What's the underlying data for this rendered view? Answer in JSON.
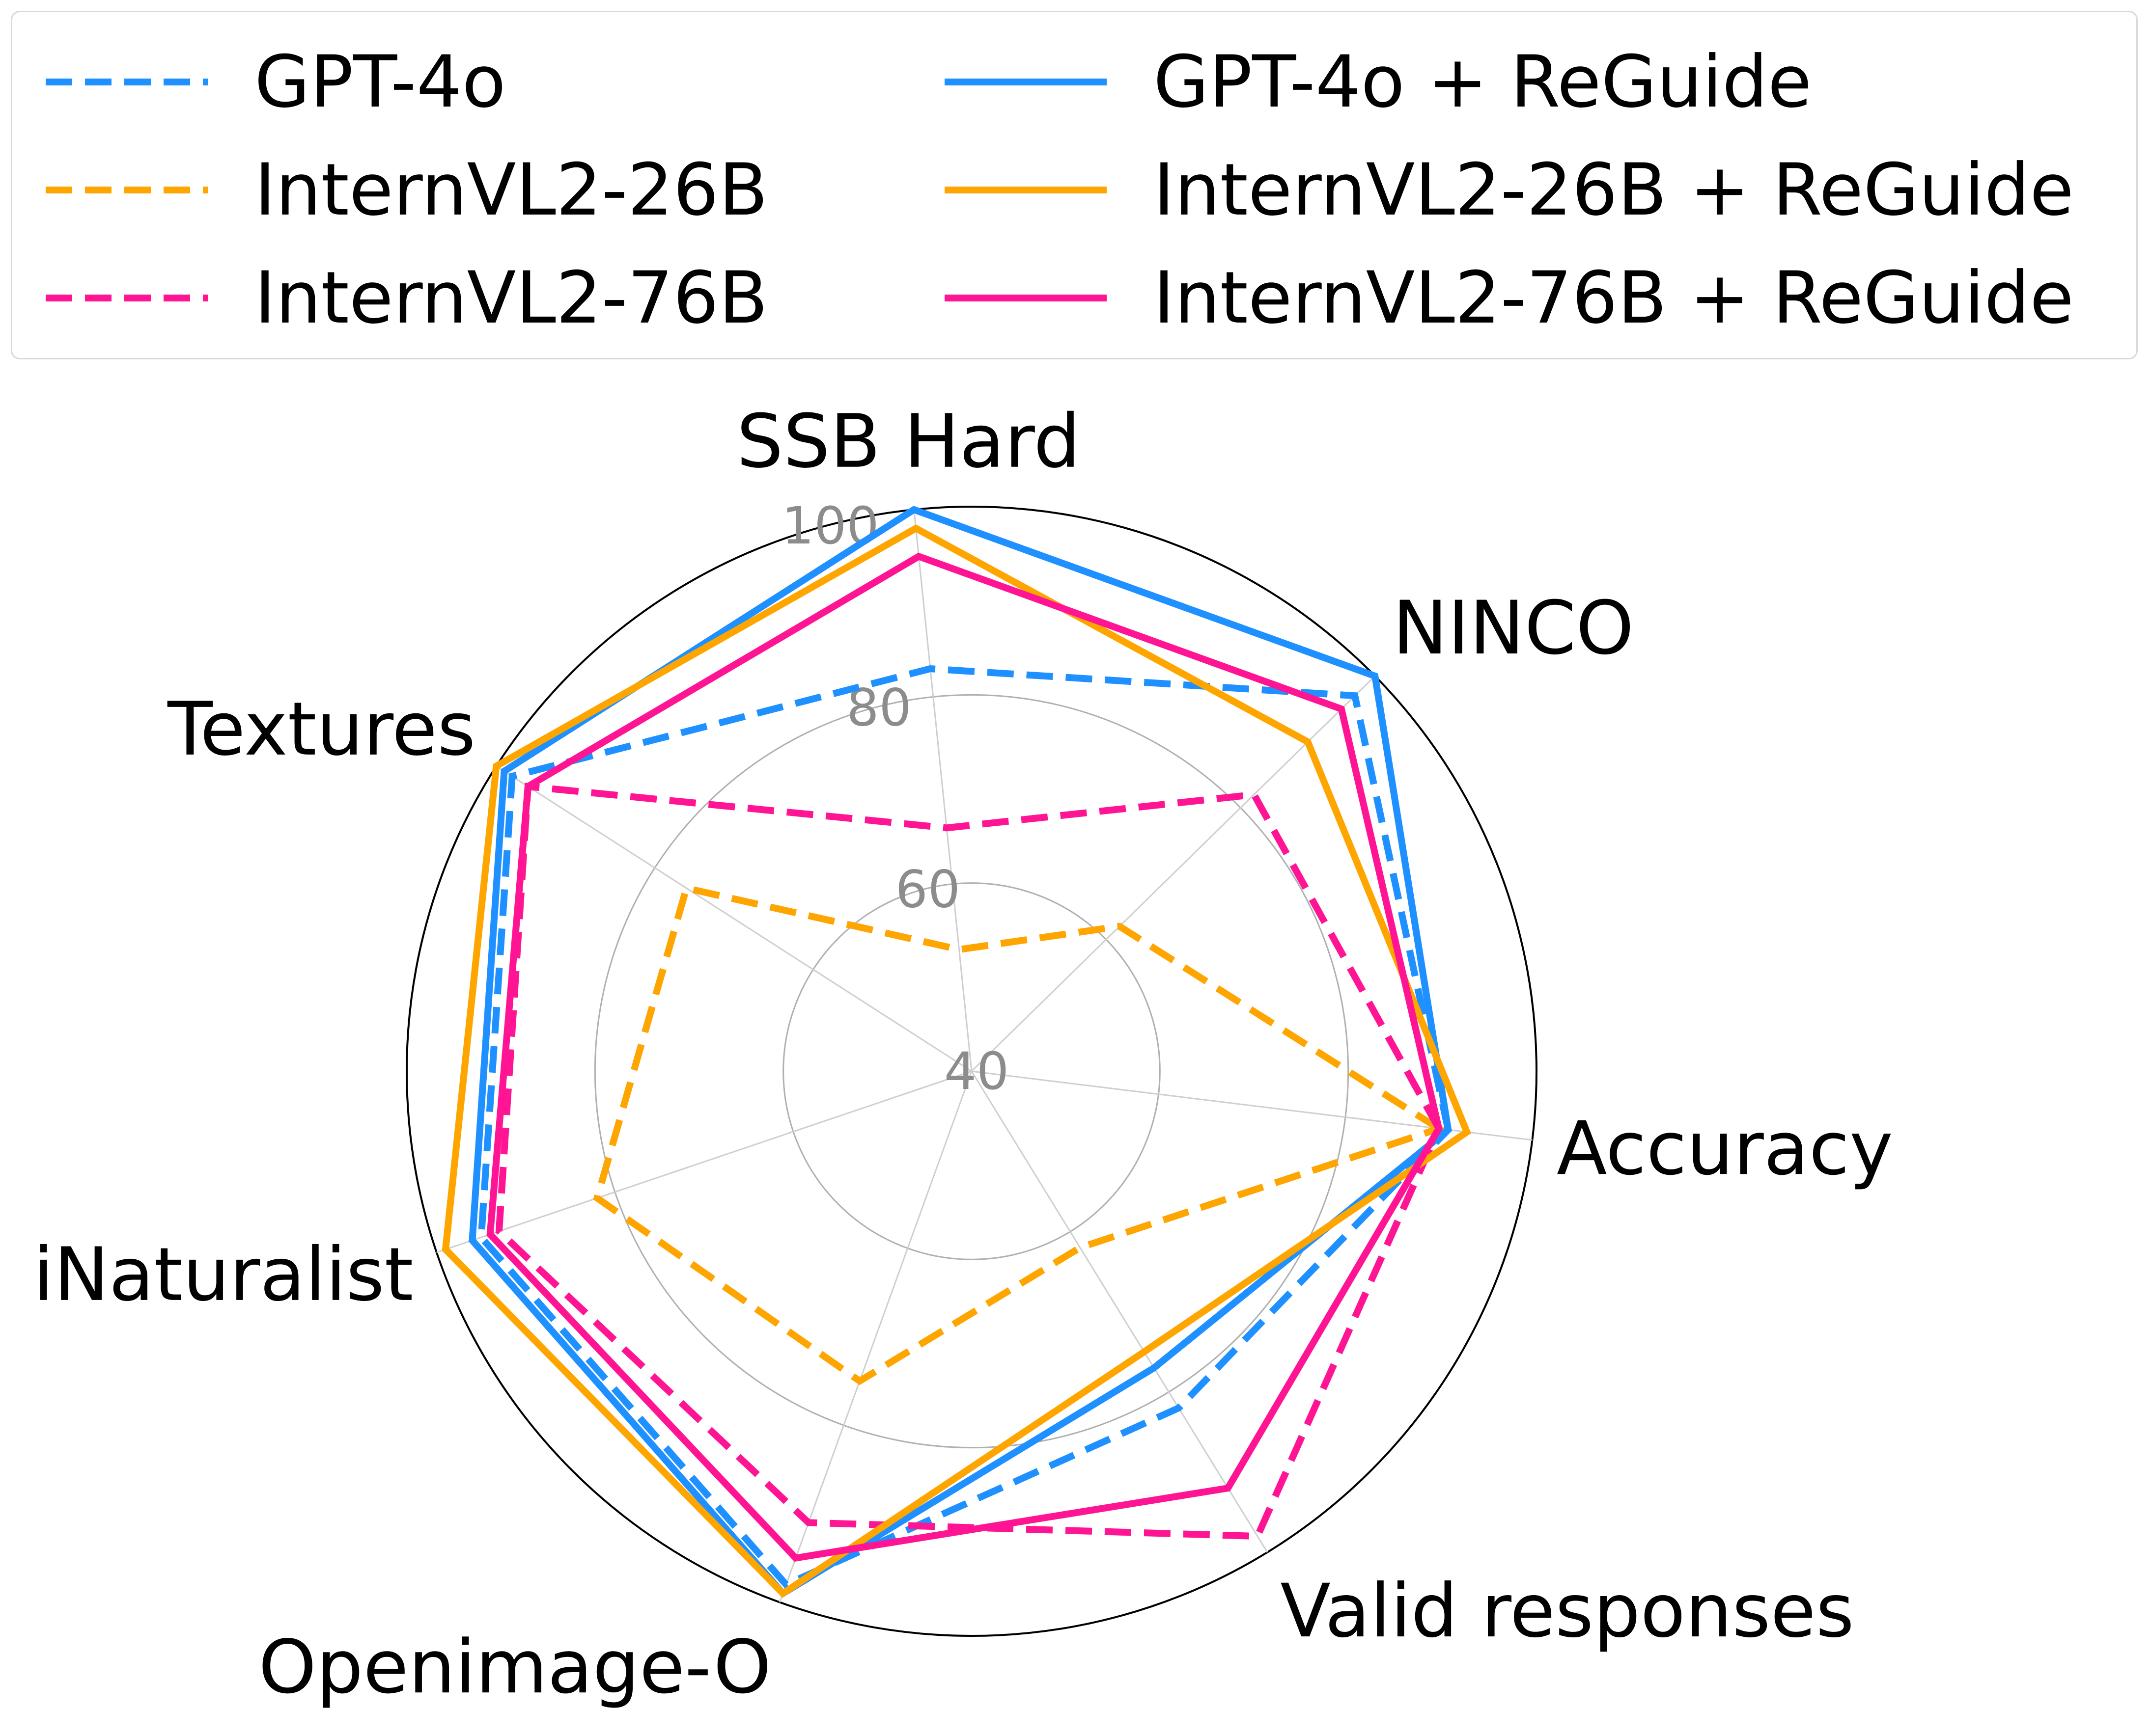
{
  "chart_data": {
    "type": "radar",
    "title": "",
    "axes": [
      "Accuracy",
      "NINCO",
      "SSB Hard",
      "Textures",
      "iNaturalist",
      "Openimage-O",
      "Valid responses"
    ],
    "rlim": [
      40,
      100
    ],
    "r_ticks": [
      40,
      60,
      80,
      100
    ],
    "r_tick_labels": [
      "40",
      "60",
      "80",
      "100"
    ],
    "grid": true,
    "legend_position": "top",
    "series": [
      {
        "name": "GPT-4o",
        "color": "#1e90ff",
        "dash": "dashed",
        "values": [
          91,
          97,
          83,
          98,
          95,
          98,
          82
        ]
      },
      {
        "name": "InternVL2-26B",
        "color": "#ffa500",
        "dash": "dashed",
        "values": [
          90,
          62,
          53,
          76,
          82,
          75,
          62
        ]
      },
      {
        "name": "InternVL2-76B",
        "color": "#ff1493",
        "dash": "dashed",
        "values": [
          90,
          82,
          66,
          96,
          93,
          91,
          98
        ]
      },
      {
        "name": "GPT-4o + ReGuide",
        "color": "#1e90ff",
        "dash": "solid",
        "values": [
          91,
          100,
          100,
          99,
          96,
          99,
          77
        ]
      },
      {
        "name": "InternVL2-26B + ReGuide",
        "color": "#ffa500",
        "dash": "solid",
        "values": [
          93,
          90,
          98,
          100,
          99,
          99,
          75
        ]
      },
      {
        "name": "InternVL2-76B + ReGuide",
        "color": "#ff1493",
        "dash": "solid",
        "values": [
          90,
          95,
          95,
          96,
          94,
          95,
          92
        ]
      }
    ]
  }
}
